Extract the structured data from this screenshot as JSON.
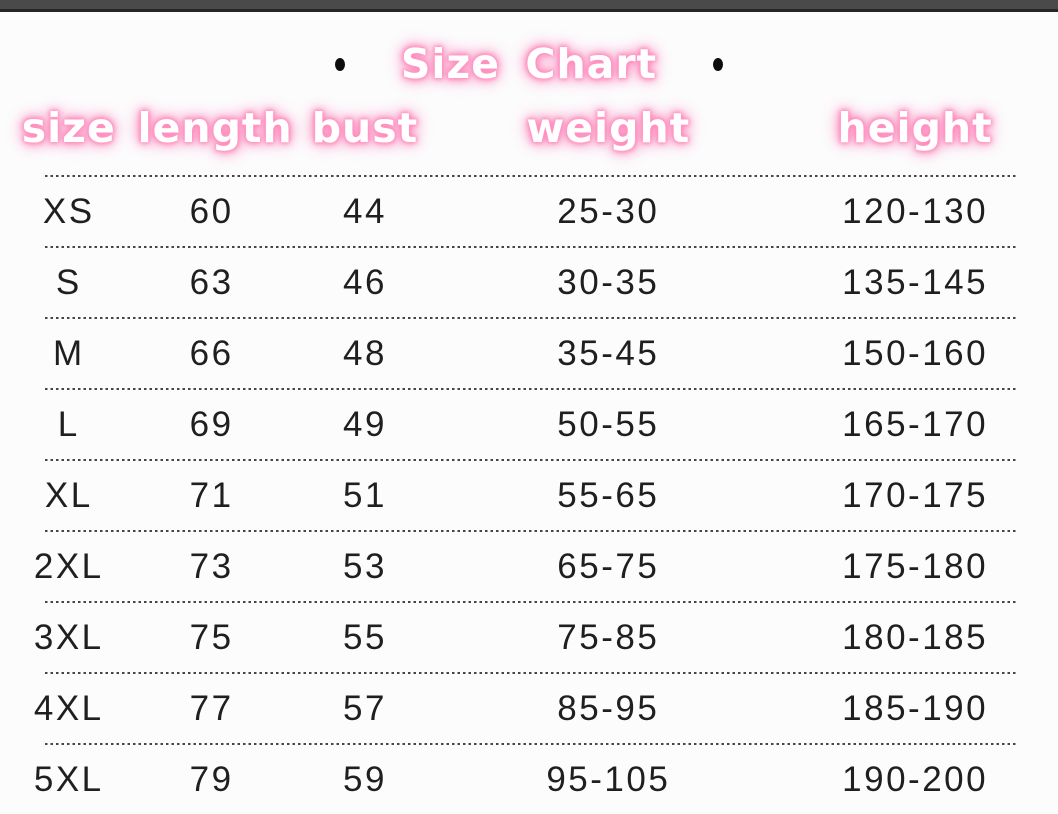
{
  "title": {
    "text": "Size Chart",
    "bullet_icon": "black-dot"
  },
  "table": {
    "headers": [
      "size",
      "length",
      "bust",
      "weight",
      "height"
    ],
    "rows": [
      [
        "XS",
        "60",
        "44",
        "25-30",
        "120-130"
      ],
      [
        "S",
        "63",
        "46",
        "30-35",
        "135-145"
      ],
      [
        "M",
        "66",
        "48",
        "35-45",
        "150-160"
      ],
      [
        "L",
        "69",
        "49",
        "50-55",
        "165-170"
      ],
      [
        "XL",
        "71",
        "51",
        "55-65",
        "170-175"
      ],
      [
        "2XL",
        "73",
        "53",
        "65-75",
        "175-180"
      ],
      [
        "3XL",
        "75",
        "55",
        "75-85",
        "180-185"
      ],
      [
        "4XL",
        "77",
        "57",
        "85-95",
        "185-190"
      ],
      [
        "5XL",
        "79",
        "59",
        "95-105",
        "190-200"
      ]
    ]
  },
  "colors": {
    "accent_pink_glow": "#ff86ba",
    "header_text": "#ffffff",
    "body_text": "#1f1f1f",
    "top_bar": "#4a4a4a",
    "divider": "#454545",
    "background": "#fcfcfc"
  }
}
